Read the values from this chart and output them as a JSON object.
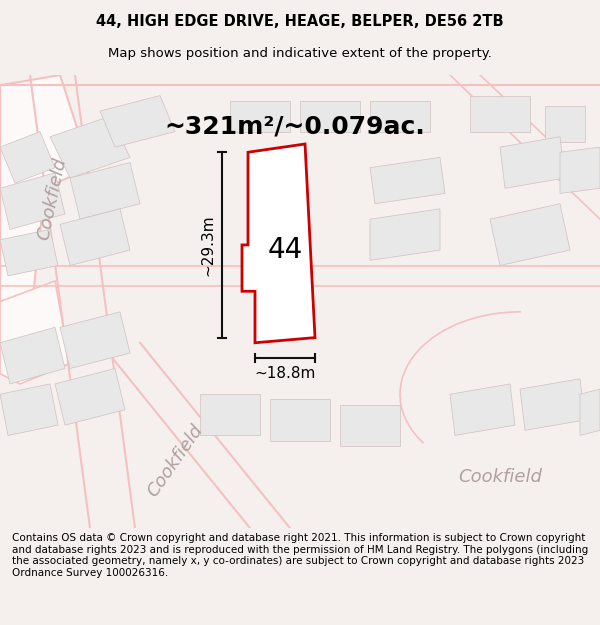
{
  "title_line1": "44, HIGH EDGE DRIVE, HEAGE, BELPER, DE56 2TB",
  "title_line2": "Map shows position and indicative extent of the property.",
  "footer_text": "Contains OS data © Crown copyright and database right 2021. This information is subject to Crown copyright and database rights 2023 and is reproduced with the permission of HM Land Registry. The polygons (including the associated geometry, namely x, y co-ordinates) are subject to Crown copyright and database rights 2023 Ordnance Survey 100026316.",
  "area_label": "~321m²/~0.079ac.",
  "number_label": "44",
  "width_label": "~18.8m",
  "height_label": "~29.3m",
  "bg_color": "#f5f0f0",
  "map_bg": "#ffffff",
  "building_fill": "#e8e8e8",
  "road_color": "#f5c0c0",
  "plot_outline_color": "#cc0000",
  "plot_fill": "#ffffff",
  "dim_line_color": "#111111",
  "street_label_color": "#888888",
  "title_fontsize": 10.5,
  "subtitle_fontsize": 9.5,
  "footer_fontsize": 7.5,
  "area_fontsize": 18,
  "number_fontsize": 20,
  "dim_fontsize": 11,
  "street_fontsize": 13
}
